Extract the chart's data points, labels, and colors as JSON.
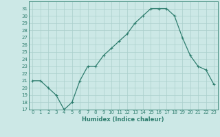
{
  "x": [
    0,
    1,
    2,
    3,
    4,
    5,
    6,
    7,
    8,
    9,
    10,
    11,
    12,
    13,
    14,
    15,
    16,
    17,
    18,
    19,
    20,
    21,
    22,
    23
  ],
  "y": [
    21,
    21,
    20,
    19,
    17,
    18,
    21,
    23,
    23,
    24.5,
    25.5,
    26.5,
    27.5,
    29,
    30,
    31,
    31,
    31,
    30,
    27,
    24.5,
    23,
    22.5,
    20.5
  ],
  "xlabel": "Humidex (Indice chaleur)",
  "xlim": [
    -0.5,
    23.5
  ],
  "ylim": [
    17,
    32
  ],
  "yticks": [
    17,
    18,
    19,
    20,
    21,
    22,
    23,
    24,
    25,
    26,
    27,
    28,
    29,
    30,
    31
  ],
  "xticks": [
    0,
    1,
    2,
    3,
    4,
    5,
    6,
    7,
    8,
    9,
    10,
    11,
    12,
    13,
    14,
    15,
    16,
    17,
    18,
    19,
    20,
    21,
    22,
    23
  ],
  "line_color": "#2e7d6e",
  "bg_color": "#cce8e6",
  "grid_color": "#aacfcc",
  "markersize": 2.0,
  "linewidth": 0.9,
  "tick_fontsize": 5.0,
  "xlabel_fontsize": 6.0
}
